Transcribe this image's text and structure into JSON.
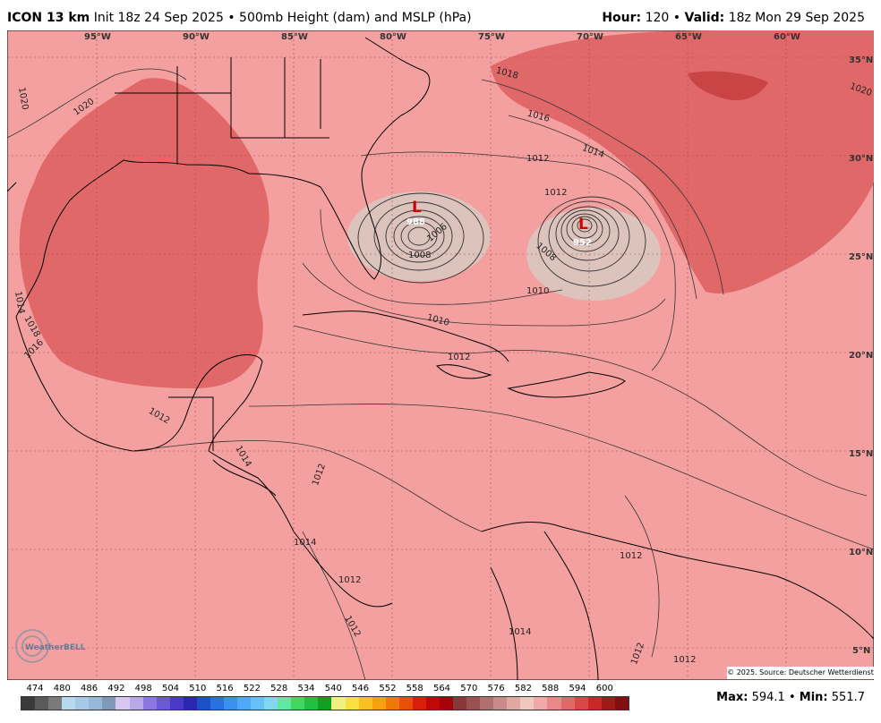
{
  "header": {
    "model": "ICON 13 km",
    "init": "Init 18z 24 Sep 2025",
    "separator": "•",
    "product": "500mb Height (dam) and MSLP (hPa)",
    "hour_label": "Hour:",
    "hour_value": "120",
    "valid_label": "Valid:",
    "valid_value": "18z Mon 29 Sep 2025"
  },
  "longitude_labels": [
    "95°W",
    "90°W",
    "85°W",
    "80°W",
    "75°W",
    "70°W",
    "65°W",
    "60°W"
  ],
  "latitude_labels": [
    "35°N",
    "30°N",
    "25°N",
    "20°N",
    "15°N",
    "10°N",
    "5°N"
  ],
  "isobar_labels": [
    "1020",
    "1020",
    "1020",
    "1018",
    "1016",
    "1014",
    "1012",
    "1012",
    "1010",
    "1010",
    "1008",
    "1008",
    "1006",
    "1012",
    "1014",
    "1016",
    "1018",
    "1012",
    "1014",
    "1012",
    "1012",
    "1012",
    "1012",
    "1012",
    "1014",
    "1014",
    "1012"
  ],
  "lows": [
    {
      "symbol": "L",
      "pressure": "988"
    },
    {
      "symbol": "L",
      "pressure": "952"
    }
  ],
  "color_scale": {
    "labels": [
      "474",
      "480",
      "486",
      "492",
      "498",
      "504",
      "510",
      "516",
      "522",
      "528",
      "534",
      "540",
      "546",
      "552",
      "558",
      "564",
      "570",
      "576",
      "582",
      "588",
      "594",
      "600"
    ],
    "colors": [
      "#3a3a3a",
      "#5a5a5a",
      "#7a7a7a",
      "#b8d8f0",
      "#a8c8e8",
      "#95b8d8",
      "#8099b8",
      "#d8c8f0",
      "#b8a8e8",
      "#8a78e0",
      "#6a58d8",
      "#4a38c8",
      "#2a28b0",
      "#1a50c8",
      "#2a70e0",
      "#3a90f0",
      "#50a8f8",
      "#68c0f8",
      "#80d8f0",
      "#60e8a0",
      "#40d860",
      "#20c040",
      "#10a020",
      "#f0f080",
      "#f8e040",
      "#f8c020",
      "#f8a010",
      "#f07808",
      "#e85008",
      "#d82008",
      "#c00808",
      "#a80008",
      "#883838",
      "#9a5050",
      "#b07070",
      "#c88a8a",
      "#e0a8a0",
      "#f0c8c0",
      "#f0a8a8",
      "#e88888",
      "#e06868",
      "#d84848",
      "#c82828",
      "#a01818",
      "#801010"
    ]
  },
  "stats": {
    "max_label": "Max:",
    "max_value": "594.1",
    "sep": "•",
    "min_label": "Min:",
    "min_value": "551.7"
  },
  "credit": "© 2025. Source: Deutscher Wetterdienst",
  "logo_text": "WeatherBELL",
  "colors": {
    "base_fill": "#f4a0a0",
    "ridge_fill": "#e06868",
    "ridge_core": "#c94444",
    "low_fill": "#dcc3bc",
    "isobar": "#333333",
    "coast": "#000000"
  }
}
